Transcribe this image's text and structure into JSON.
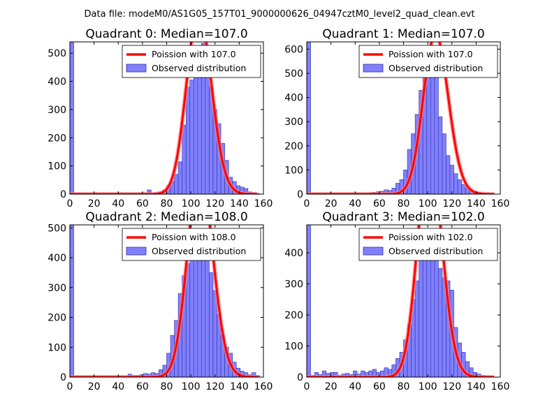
{
  "suptitle": "Data file: modeM0/AS1G05_157T01_9000000626_04947cztM0_level2_quad_clean.evt",
  "colors": {
    "bar_fill": "#8080ff",
    "bar_edge": "#3030a0",
    "curve": "#ff0000",
    "curve_glow": "#ff8080"
  },
  "chart_data": [
    {
      "type": "bar",
      "title": "Quadrant 0: Median=107.0",
      "legend": [
        "Poission with 107.0",
        "Observed distribution"
      ],
      "mean": 107.0,
      "xlim": [
        0,
        160
      ],
      "ylim": [
        0,
        540
      ],
      "xticks": [
        0,
        20,
        40,
        60,
        80,
        100,
        120,
        140,
        160
      ],
      "yticks": [
        0,
        100,
        200,
        300,
        400,
        500
      ],
      "bin_width": 3.2,
      "bin_starts": [
        0,
        3.2,
        6.4,
        9.6,
        12.8,
        16,
        19.2,
        22.4,
        25.6,
        28.8,
        32,
        35.2,
        38.4,
        41.6,
        44.8,
        48,
        51.2,
        54.4,
        57.6,
        60.8,
        64,
        67.2,
        70.4,
        73.6,
        76.8,
        80,
        83.2,
        86.4,
        89.6,
        92.8,
        96,
        99.2,
        102.4,
        105.6,
        108.8,
        112,
        115.2,
        118.4,
        121.6,
        124.8,
        128,
        131.2,
        134.4,
        137.6,
        140.8,
        144,
        147.2,
        150.4,
        153.6
      ],
      "counts": [
        540,
        0,
        0,
        0,
        0,
        0,
        0,
        0,
        0,
        0,
        0,
        0,
        0,
        0,
        0,
        0,
        0,
        0,
        0,
        0,
        15,
        2,
        5,
        8,
        15,
        30,
        45,
        70,
        115,
        245,
        380,
        405,
        440,
        455,
        535,
        470,
        380,
        300,
        250,
        180,
        120,
        60,
        45,
        30,
        25,
        20,
        8,
        5,
        2
      ]
    },
    {
      "type": "bar",
      "title": "Quadrant 1: Median=107.0",
      "legend": [
        "Poission with 107.0",
        "Observed distribution"
      ],
      "mean": 107.0,
      "xlim": [
        0,
        160
      ],
      "ylim": [
        0,
        630
      ],
      "xticks": [
        0,
        20,
        40,
        60,
        80,
        100,
        120,
        140,
        160
      ],
      "yticks": [
        0,
        100,
        200,
        300,
        400,
        500,
        600
      ],
      "bin_width": 3.2,
      "bin_starts": [
        0,
        3.2,
        6.4,
        9.6,
        12.8,
        16,
        19.2,
        22.4,
        25.6,
        28.8,
        32,
        35.2,
        38.4,
        41.6,
        44.8,
        48,
        51.2,
        54.4,
        57.6,
        60.8,
        64,
        67.2,
        70.4,
        73.6,
        76.8,
        80,
        83.2,
        86.4,
        89.6,
        92.8,
        96,
        99.2,
        102.4,
        105.6,
        108.8,
        112,
        115.2,
        118.4,
        121.6,
        124.8,
        128,
        131.2,
        134.4,
        137.6,
        140.8,
        144,
        147.2,
        150.4,
        153.6
      ],
      "counts": [
        630,
        0,
        0,
        0,
        0,
        0,
        0,
        0,
        0,
        0,
        0,
        0,
        0,
        0,
        0,
        0,
        5,
        8,
        10,
        12,
        18,
        15,
        25,
        45,
        60,
        100,
        185,
        250,
        330,
        430,
        490,
        570,
        580,
        490,
        320,
        250,
        160,
        120,
        85,
        60,
        40,
        25,
        18,
        12,
        8,
        5,
        3,
        2,
        0
      ]
    },
    {
      "type": "bar",
      "title": "Quadrant 2: Median=108.0",
      "legend": [
        "Poission with 108.0",
        "Observed distribution"
      ],
      "mean": 108.0,
      "xlim": [
        0,
        160
      ],
      "ylim": [
        0,
        510
      ],
      "xticks": [
        0,
        20,
        40,
        60,
        80,
        100,
        120,
        140,
        160
      ],
      "yticks": [
        0,
        100,
        200,
        300,
        400,
        500
      ],
      "bin_width": 3.2,
      "bin_starts": [
        0,
        3.2,
        6.4,
        9.6,
        12.8,
        16,
        19.2,
        22.4,
        25.6,
        28.8,
        32,
        35.2,
        38.4,
        41.6,
        44.8,
        48,
        51.2,
        54.4,
        57.6,
        60.8,
        64,
        67.2,
        70.4,
        73.6,
        76.8,
        80,
        83.2,
        86.4,
        89.6,
        92.8,
        96,
        99.2,
        102.4,
        105.6,
        108.8,
        112,
        115.2,
        118.4,
        121.6,
        124.8,
        128,
        131.2,
        134.4,
        137.6,
        140.8,
        144,
        147.2,
        150.4,
        153.6
      ],
      "counts": [
        510,
        0,
        0,
        0,
        0,
        0,
        0,
        0,
        0,
        0,
        0,
        0,
        0,
        0,
        0,
        10,
        5,
        5,
        8,
        12,
        10,
        15,
        12,
        25,
        40,
        80,
        140,
        190,
        280,
        340,
        380,
        410,
        470,
        470,
        490,
        420,
        350,
        290,
        210,
        140,
        100,
        80,
        50,
        30,
        20,
        15,
        8,
        15,
        5
      ]
    },
    {
      "type": "bar",
      "title": "Quadrant 3: Median=102.0",
      "legend": [
        "Poission with 102.0",
        "Observed distribution"
      ],
      "mean": 102.0,
      "xlim": [
        0,
        160
      ],
      "ylim": [
        0,
        490
      ],
      "xticks": [
        0,
        20,
        40,
        60,
        80,
        100,
        120,
        140,
        160
      ],
      "yticks": [
        0,
        100,
        200,
        300,
        400
      ],
      "bin_width": 3.2,
      "bin_starts": [
        0,
        3.2,
        6.4,
        9.6,
        12.8,
        16,
        19.2,
        22.4,
        25.6,
        28.8,
        32,
        35.2,
        38.4,
        41.6,
        44.8,
        48,
        51.2,
        54.4,
        57.6,
        60.8,
        64,
        67.2,
        70.4,
        73.6,
        76.8,
        80,
        83.2,
        86.4,
        89.6,
        92.8,
        96,
        99.2,
        102.4,
        105.6,
        108.8,
        112,
        115.2,
        118.4,
        121.6,
        124.8,
        128,
        131.2,
        134.4,
        137.6,
        140.8,
        144,
        147.2,
        150.4,
        153.6
      ],
      "counts": [
        490,
        5,
        15,
        8,
        20,
        12,
        15,
        15,
        5,
        10,
        12,
        8,
        20,
        10,
        20,
        15,
        20,
        25,
        15,
        20,
        30,
        25,
        40,
        60,
        80,
        120,
        170,
        250,
        310,
        380,
        410,
        465,
        455,
        400,
        350,
        320,
        310,
        280,
        160,
        110,
        80,
        50,
        30,
        15,
        10,
        5,
        3,
        2,
        0
      ]
    }
  ]
}
